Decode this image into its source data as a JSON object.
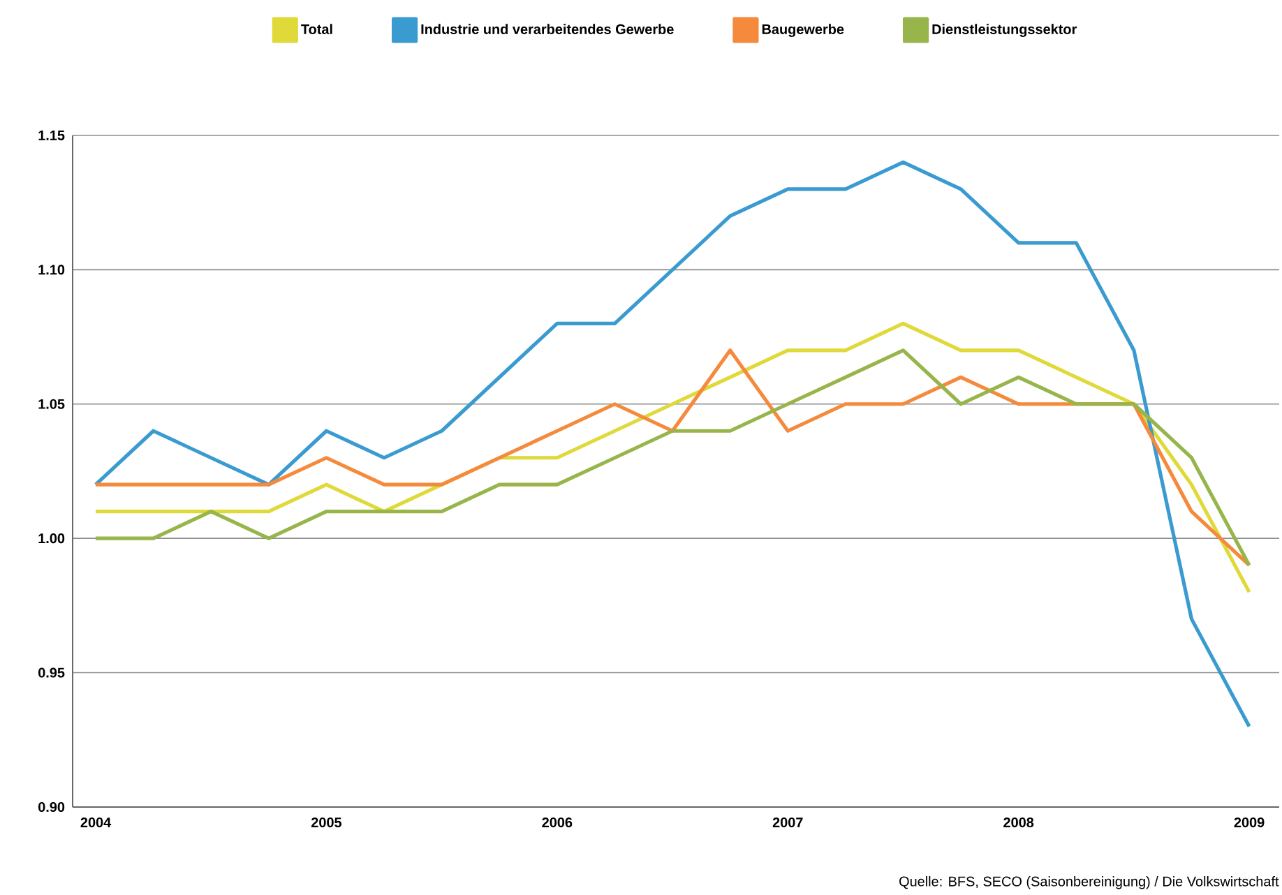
{
  "chart_data": {
    "type": "line",
    "legend": "top",
    "grid": "y",
    "line_style": "solid",
    "marker": "none",
    "annotations": [
      "Quelle: BFS, SECO (Saisonbereinigung) / Die Volkswirtschaft"
    ],
    "x": [
      2004,
      2004.25,
      2004.5,
      2004.75,
      2005,
      2005.25,
      2005.5,
      2005.75,
      2006,
      2006.25,
      2006.5,
      2006.75,
      2007,
      2007.25,
      2007.5,
      2007.75,
      2008,
      2008.25,
      2008.5,
      2008.75,
      2009
    ],
    "xlim": [
      2003.9,
      2009.13
    ],
    "xticks": [
      {
        "value": 2004,
        "label": "2004"
      },
      {
        "value": 2005,
        "label": "2005"
      },
      {
        "value": 2006,
        "label": "2006"
      },
      {
        "value": 2007,
        "label": "2007"
      },
      {
        "value": 2008,
        "label": "2008"
      },
      {
        "value": 2009,
        "label": "2009"
      }
    ],
    "ylim": [
      0.9,
      1.15
    ],
    "yticks": [
      {
        "value": 0.9,
        "label": "0.90"
      },
      {
        "value": 0.95,
        "label": "0.95"
      },
      {
        "value": 1.0,
        "label": "1.00"
      },
      {
        "value": 1.05,
        "label": "1.05"
      },
      {
        "value": 1.1,
        "label": "1.10"
      },
      {
        "value": 1.15,
        "label": "1.15"
      }
    ],
    "series": [
      {
        "name": "Total",
        "color": "#e0d93a",
        "values": [
          1.01,
          1.01,
          1.01,
          1.01,
          1.02,
          1.01,
          1.02,
          1.03,
          1.03,
          1.04,
          1.05,
          1.06,
          1.07,
          1.07,
          1.08,
          1.07,
          1.07,
          1.06,
          1.05,
          1.02,
          0.98
        ]
      },
      {
        "name": "Industrie und verarbeitendes Gewerbe",
        "color": "#3a9bd0",
        "values": [
          1.02,
          1.04,
          1.03,
          1.02,
          1.04,
          1.03,
          1.04,
          1.06,
          1.08,
          1.08,
          1.1,
          1.12,
          1.13,
          1.13,
          1.14,
          1.13,
          1.11,
          1.11,
          1.07,
          0.97,
          0.93
        ]
      },
      {
        "name": "Baugewerbe",
        "color": "#f58a3c",
        "values": [
          1.02,
          1.02,
          1.02,
          1.02,
          1.03,
          1.02,
          1.02,
          1.03,
          1.04,
          1.05,
          1.04,
          1.07,
          1.04,
          1.05,
          1.05,
          1.06,
          1.05,
          1.05,
          1.05,
          1.01,
          0.99
        ]
      },
      {
        "name": "Dienstleistungssektor",
        "color": "#97b54a",
        "values": [
          1.0,
          1.0,
          1.01,
          1.0,
          1.01,
          1.01,
          1.01,
          1.02,
          1.02,
          1.03,
          1.04,
          1.04,
          1.05,
          1.06,
          1.07,
          1.05,
          1.06,
          1.05,
          1.05,
          1.03,
          0.99
        ]
      }
    ]
  }
}
